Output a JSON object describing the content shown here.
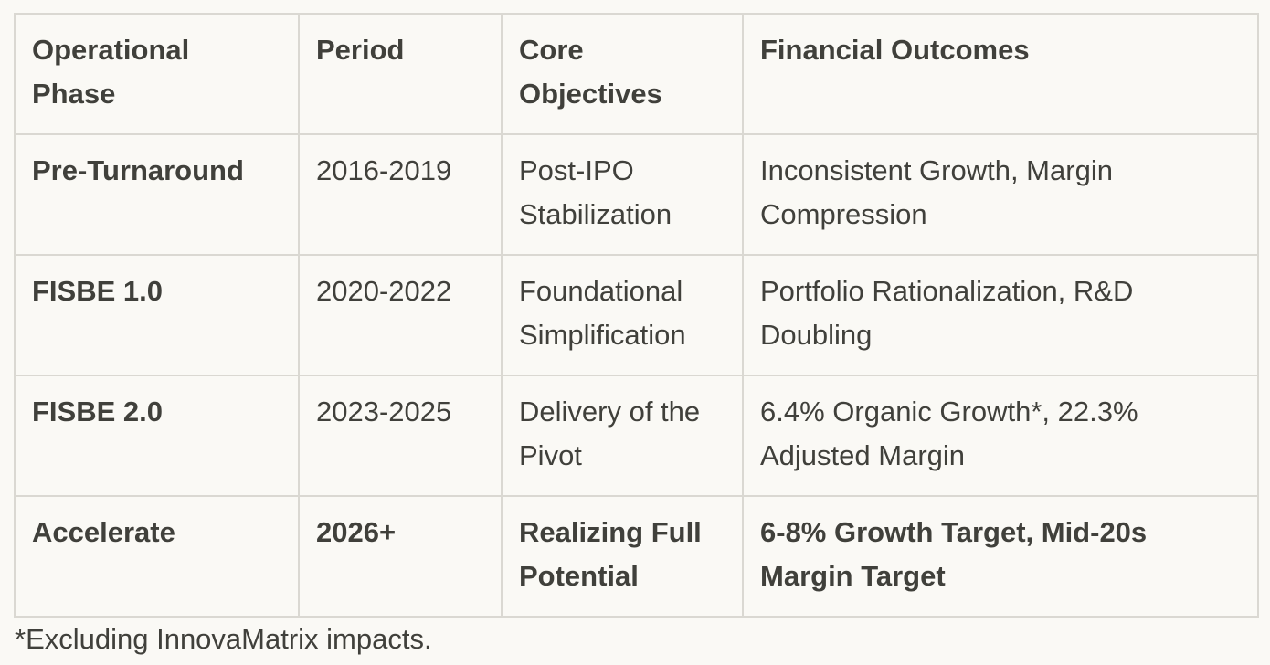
{
  "page": {
    "background_color": "#FAF9F5",
    "text_color": "#40403B",
    "border_color": "#DAD8D2"
  },
  "table": {
    "columns": [
      {
        "label": "Operational Phase"
      },
      {
        "label": "Period"
      },
      {
        "label": "Core Objectives"
      },
      {
        "label": "Financial Outcomes"
      }
    ],
    "rows": [
      {
        "phase": "Pre-Turnaround",
        "period": "2016-2019",
        "objectives": "Post-IPO Stabilization",
        "outcomes": "Inconsistent Growth, Margin Compression"
      },
      {
        "phase": "FISBE 1.0",
        "period": "2020-2022",
        "objectives": "Foundational Simplification",
        "outcomes": "Portfolio Rationalization, R&D Doubling"
      },
      {
        "phase": "FISBE 2.0",
        "period": "2023-2025",
        "objectives": "Delivery of the Pivot",
        "outcomes": "6.4% Organic Growth*, 22.3% Adjusted Margin"
      },
      {
        "phase": "Accelerate",
        "period": "2026+",
        "objectives": "Realizing Full Potential",
        "outcomes": "6-8% Growth Target, Mid-20s Margin Target"
      }
    ],
    "footnote": "*Excluding InnovaMatrix impacts."
  }
}
